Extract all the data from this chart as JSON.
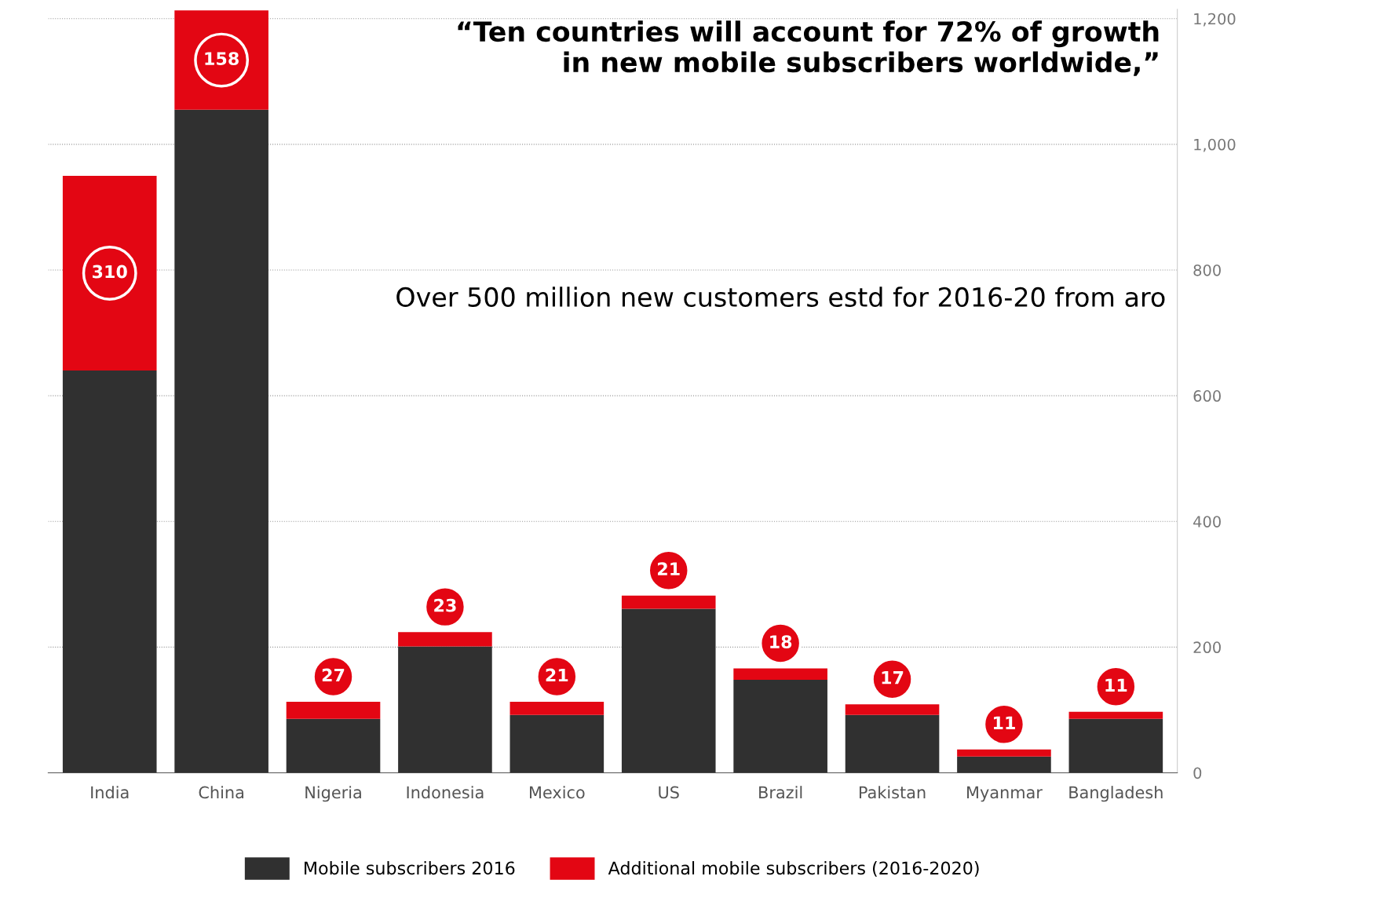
{
  "chart_data": {
    "type": "bar",
    "stacked": true,
    "title": "“Ten countries will account for 72% of growth\nin new mobile subscribers worldwide,”",
    "annotations": [
      "Over 500 million new customers estd for 2016-20 from aro"
    ],
    "categories": [
      "India",
      "China",
      "Nigeria",
      "Indonesia",
      "Mexico",
      "US",
      "Brazil",
      "Pakistan",
      "Myanmar",
      "Bangladesh"
    ],
    "series": [
      {
        "name": "Mobile subscribers 2016",
        "color": "#303030",
        "values": [
          640,
          1055,
          86,
          201,
          92,
          261,
          148,
          92,
          26,
          86
        ]
      },
      {
        "name": "Additional mobile subscribers (2016-2020)",
        "color": "#e30613",
        "values": [
          310,
          158,
          27,
          23,
          21,
          21,
          18,
          17,
          11,
          11
        ],
        "value_labels": [
          "310",
          "158",
          "27",
          "23",
          "21",
          "21",
          "18",
          "17",
          "11",
          "11"
        ]
      }
    ],
    "ylim": [
      0,
      1215
    ],
    "yticks": [
      0,
      200,
      400,
      600,
      800,
      {
        "value": 1000,
        "label": "1,000"
      },
      {
        "value": 1200,
        "label": "1,200"
      }
    ],
    "grid": "y",
    "legend": "bottom"
  }
}
